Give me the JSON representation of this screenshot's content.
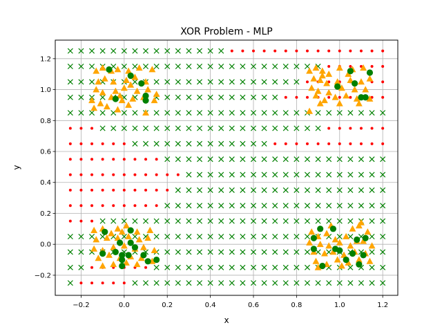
{
  "chart_data": {
    "type": "scatter",
    "title": "XOR Problem - MLP",
    "xlabel": "x",
    "ylabel": "y",
    "xlim": [
      -0.32,
      1.27
    ],
    "ylim": [
      -0.33,
      1.32
    ],
    "grid": true,
    "x_ticks": [
      -0.2,
      0.0,
      0.2,
      0.4,
      0.6,
      0.8,
      1.0,
      1.2
    ],
    "y_ticks": [
      -0.2,
      0.0,
      0.2,
      0.4,
      0.6,
      0.8,
      1.0,
      1.2
    ],
    "x_tick_labels": [
      "−0.2",
      "0.0",
      "0.2",
      "0.4",
      "0.6",
      "0.8",
      "1.0",
      "1.2"
    ],
    "y_tick_labels": [
      "−0.2",
      "0.0",
      "0.2",
      "0.4",
      "0.6",
      "0.8",
      "1.0",
      "1.2"
    ],
    "decision_grid": {
      "x_start": -0.25,
      "x_step": 0.05,
      "x_count": 30,
      "y_start": -0.25,
      "y_step": 0.1,
      "y_count": 16,
      "red_runs": [
        [
          [
            1,
            5
          ]
        ],
        [
          [
            2,
            7
          ]
        ],
        [],
        [],
        [
          [
            0,
            2
          ]
        ],
        [
          [
            0,
            8
          ]
        ],
        [
          [
            0,
            9
          ]
        ],
        [
          [
            0,
            10
          ]
        ],
        [
          [
            0,
            8
          ]
        ],
        [
          [
            0,
            5
          ],
          [
            19,
            29
          ]
        ],
        [
          [
            0,
            2
          ],
          [
            24,
            29
          ]
        ],
        [],
        [
          [
            20,
            29
          ]
        ],
        [
          [
            22,
            29
          ]
        ],
        [
          [
            24,
            29
          ]
        ],
        [
          [
            15,
            29
          ]
        ]
      ],
      "red_color": "#ff0000",
      "green_color": "#008000"
    },
    "series": [
      {
        "marker": "triangle",
        "color": "#ffa500",
        "points": [
          [
            -0.13,
            1.12
          ],
          [
            -0.1,
            1.14
          ],
          [
            -0.06,
            1.12
          ],
          [
            -0.03,
            1.13
          ],
          [
            0.02,
            1.12
          ],
          [
            0.07,
            1.14
          ],
          [
            0.13,
            1.13
          ],
          [
            -0.12,
            1.05
          ],
          [
            -0.09,
            1.07
          ],
          [
            -0.05,
            1.05
          ],
          [
            0.01,
            1.06
          ],
          [
            0.05,
            1.08
          ],
          [
            0.1,
            1.05
          ],
          [
            -0.13,
            1.0
          ],
          [
            -0.1,
            0.98
          ],
          [
            -0.04,
            0.99
          ],
          [
            0.0,
            1.01
          ],
          [
            0.06,
            0.99
          ],
          [
            0.11,
            1.0
          ],
          [
            0.15,
            0.97
          ],
          [
            -0.15,
            0.93
          ],
          [
            -0.11,
            0.91
          ],
          [
            -0.06,
            0.95
          ],
          [
            -0.01,
            0.93
          ],
          [
            0.04,
            0.94
          ],
          [
            0.09,
            0.95
          ],
          [
            0.14,
            0.93
          ],
          [
            -0.14,
            0.88
          ],
          [
            -0.08,
            0.89
          ],
          [
            -0.03,
            0.87
          ],
          [
            0.02,
            0.9
          ],
          [
            0.1,
            0.85
          ],
          [
            -0.02,
            0.96
          ],
          [
            0.03,
            1.03
          ],
          [
            0.86,
            1.12
          ],
          [
            0.89,
            1.14
          ],
          [
            0.92,
            1.12
          ],
          [
            0.95,
            1.1
          ],
          [
            1.0,
            1.14
          ],
          [
            1.06,
            1.13
          ],
          [
            1.11,
            1.14
          ],
          [
            0.88,
            1.07
          ],
          [
            0.91,
            1.06
          ],
          [
            0.94,
            1.04
          ],
          [
            0.99,
            1.05
          ],
          [
            1.05,
            1.06
          ],
          [
            1.1,
            1.05
          ],
          [
            1.14,
            1.07
          ],
          [
            0.87,
            1.01
          ],
          [
            0.9,
            0.99
          ],
          [
            0.95,
            0.98
          ],
          [
            1.01,
            1.01
          ],
          [
            1.07,
            1.0
          ],
          [
            1.12,
            1.0
          ],
          [
            0.89,
            0.96
          ],
          [
            0.93,
            0.93
          ],
          [
            0.98,
            0.95
          ],
          [
            1.03,
            0.96
          ],
          [
            1.08,
            0.94
          ],
          [
            1.14,
            0.94
          ],
          [
            0.86,
            0.86
          ],
          [
            0.91,
            0.91
          ],
          [
            1.0,
            0.91
          ],
          [
            1.09,
            0.91
          ],
          [
            0.92,
            1.09
          ],
          [
            1.04,
            1.1
          ],
          [
            -0.14,
            0.09
          ],
          [
            -0.1,
            0.1
          ],
          [
            -0.06,
            0.07
          ],
          [
            -0.03,
            0.1
          ],
          [
            0.01,
            0.12
          ],
          [
            0.06,
            0.08
          ],
          [
            0.12,
            0.09
          ],
          [
            -0.13,
            0.03
          ],
          [
            -0.08,
            0.04
          ],
          [
            -0.03,
            0.04
          ],
          [
            0.02,
            0.05
          ],
          [
            0.07,
            0.03
          ],
          [
            0.11,
            0.04
          ],
          [
            -0.14,
            -0.03
          ],
          [
            -0.1,
            -0.04
          ],
          [
            -0.05,
            -0.02
          ],
          [
            0.0,
            -0.01
          ],
          [
            0.05,
            -0.03
          ],
          [
            0.09,
            -0.02
          ],
          [
            0.14,
            -0.04
          ],
          [
            -0.12,
            -0.09
          ],
          [
            -0.07,
            -0.07
          ],
          [
            -0.02,
            -0.09
          ],
          [
            0.03,
            -0.08
          ],
          [
            0.08,
            -0.09
          ],
          [
            -0.1,
            -0.14
          ],
          [
            -0.05,
            -0.13
          ],
          [
            0.01,
            -0.12
          ],
          [
            0.06,
            -0.13
          ],
          [
            0.13,
            -0.11
          ],
          [
            -0.01,
            0.08
          ],
          [
            0.87,
            0.08
          ],
          [
            0.9,
            0.05
          ],
          [
            0.94,
            0.07
          ],
          [
            0.98,
            0.03
          ],
          [
            1.03,
            0.05
          ],
          [
            1.06,
            0.1
          ],
          [
            1.09,
            0.12
          ],
          [
            1.13,
            0.08
          ],
          [
            0.86,
            0.01
          ],
          [
            0.91,
            0.0
          ],
          [
            0.95,
            -0.01
          ],
          [
            1.0,
            0.01
          ],
          [
            1.05,
            -0.01
          ],
          [
            1.11,
            0.02
          ],
          [
            1.15,
            -0.01
          ],
          [
            0.88,
            -0.05
          ],
          [
            0.93,
            -0.06
          ],
          [
            0.97,
            -0.05
          ],
          [
            1.02,
            -0.07
          ],
          [
            1.07,
            -0.05
          ],
          [
            1.12,
            -0.06
          ],
          [
            0.89,
            -0.11
          ],
          [
            0.94,
            -0.13
          ],
          [
            0.99,
            -0.1
          ],
          [
            1.04,
            -0.12
          ],
          [
            1.09,
            -0.1
          ],
          [
            1.14,
            -0.11
          ],
          [
            0.9,
            -0.15
          ],
          [
            1.01,
            -0.14
          ],
          [
            1.08,
            0.02
          ],
          [
            0.96,
            0.12
          ],
          [
            1.1,
            0.14
          ]
        ]
      },
      {
        "marker": "circle",
        "color": "#008000",
        "points": [
          [
            -0.07,
            1.13
          ],
          [
            0.03,
            1.09
          ],
          [
            0.08,
            1.04
          ],
          [
            -0.04,
            0.94
          ],
          [
            0.1,
            0.96
          ],
          [
            0.1,
            0.93
          ],
          [
            1.05,
            1.12
          ],
          [
            1.14,
            1.11
          ],
          [
            0.99,
            1.02
          ],
          [
            1.07,
            1.04
          ],
          [
            1.1,
            0.95
          ],
          [
            1.12,
            0.95
          ],
          [
            -0.09,
            0.08
          ],
          [
            -0.1,
            -0.06
          ],
          [
            -0.02,
            0.01
          ],
          [
            0.03,
            0.01
          ],
          [
            -0.04,
            -0.05
          ],
          [
            0.05,
            -0.02
          ],
          [
            0.03,
            0.09
          ],
          [
            -0.01,
            -0.07
          ],
          [
            -0.01,
            -0.1
          ],
          [
            0.02,
            -0.07
          ],
          [
            -0.01,
            -0.14
          ],
          [
            0.09,
            -0.07
          ],
          [
            0.11,
            -0.11
          ],
          [
            0.15,
            -0.1
          ],
          [
            0.88,
            0.04
          ],
          [
            0.88,
            -0.03
          ],
          [
            0.91,
            0.1
          ],
          [
            0.97,
            0.1
          ],
          [
            0.98,
            -0.03
          ],
          [
            1.06,
            -0.06
          ],
          [
            1.08,
            0.03
          ],
          [
            1.12,
            0.04
          ],
          [
            1.11,
            -0.07
          ],
          [
            0.92,
            -0.14
          ],
          [
            1.03,
            -0.1
          ],
          [
            1.09,
            -0.13
          ],
          [
            1.0,
            -0.04
          ]
        ]
      }
    ]
  }
}
